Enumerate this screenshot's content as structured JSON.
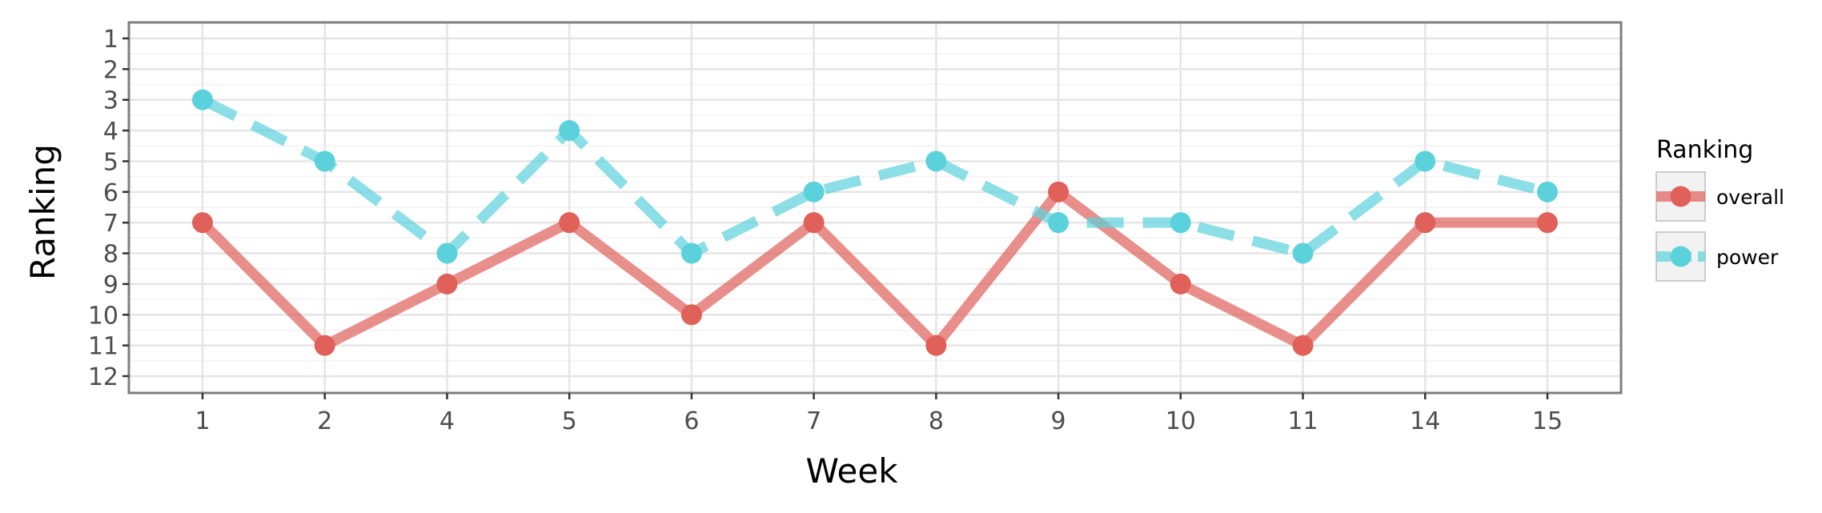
{
  "chart_data": {
    "type": "line",
    "xlabel": "Week",
    "ylabel": "Ranking",
    "categories": [
      "1",
      "2",
      "4",
      "5",
      "6",
      "7",
      "8",
      "9",
      "10",
      "11",
      "14",
      "15"
    ],
    "y_ticks": [
      "1",
      "2",
      "3",
      "4",
      "5",
      "6",
      "7",
      "8",
      "9",
      "10",
      "11",
      "12"
    ],
    "ylim": [
      1,
      12
    ],
    "y_reversed": true,
    "grid": true,
    "legend": {
      "title": "Ranking",
      "placement": "right"
    },
    "series": [
      {
        "name": "overall",
        "color": "#E0605A",
        "style": "solid",
        "values": [
          7,
          11,
          9,
          7,
          10,
          7,
          11,
          6,
          9,
          11,
          7,
          7
        ]
      },
      {
        "name": "power",
        "color": "#5BD2DB",
        "style": "dashed",
        "values": [
          3,
          5,
          8,
          4,
          8,
          6,
          5,
          7,
          7,
          8,
          5,
          6
        ]
      }
    ]
  }
}
